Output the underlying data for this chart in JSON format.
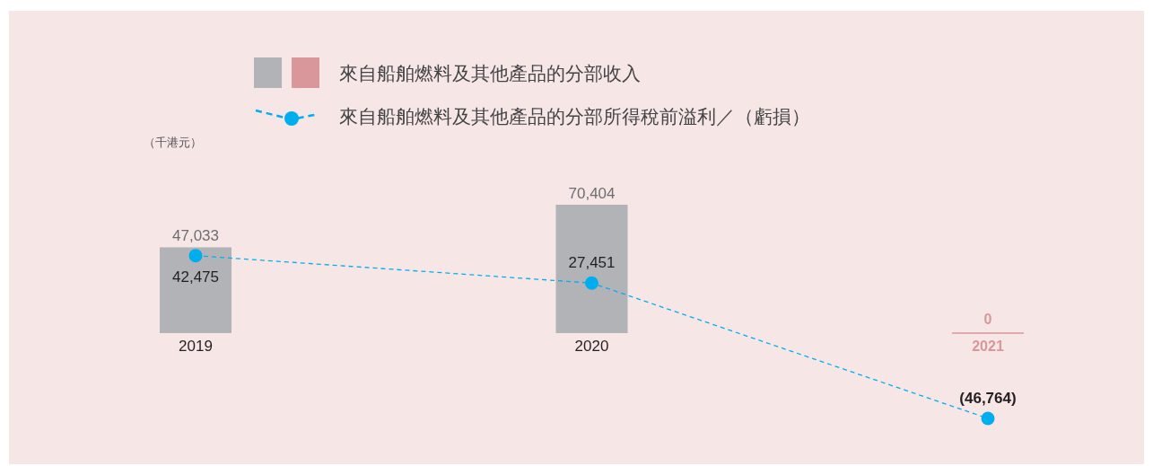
{
  "chart_data": {
    "type": "bar",
    "ylabel": "（千港元）",
    "categories": [
      "2019",
      "2020",
      "2021"
    ],
    "legend": "top",
    "series": [
      {
        "name": "來自船舶燃料及其他產品的分部收入",
        "colors": [
          "#b2b3b6",
          "#b2b3b6",
          "#d9979c"
        ],
        "values": [
          47033,
          70404,
          0
        ],
        "value_labels": [
          "47,033",
          "70,404",
          "0"
        ]
      },
      {
        "name": "來自船舶燃料及其他產品的分部所得稅前溢利／（虧損）",
        "type": "line",
        "color": "#00aeef",
        "marker": "circle",
        "line_style": "dashed",
        "values": [
          42475,
          27451,
          -46764
        ],
        "value_labels": [
          "42,475",
          "27,451",
          "(46,764)"
        ]
      }
    ]
  }
}
